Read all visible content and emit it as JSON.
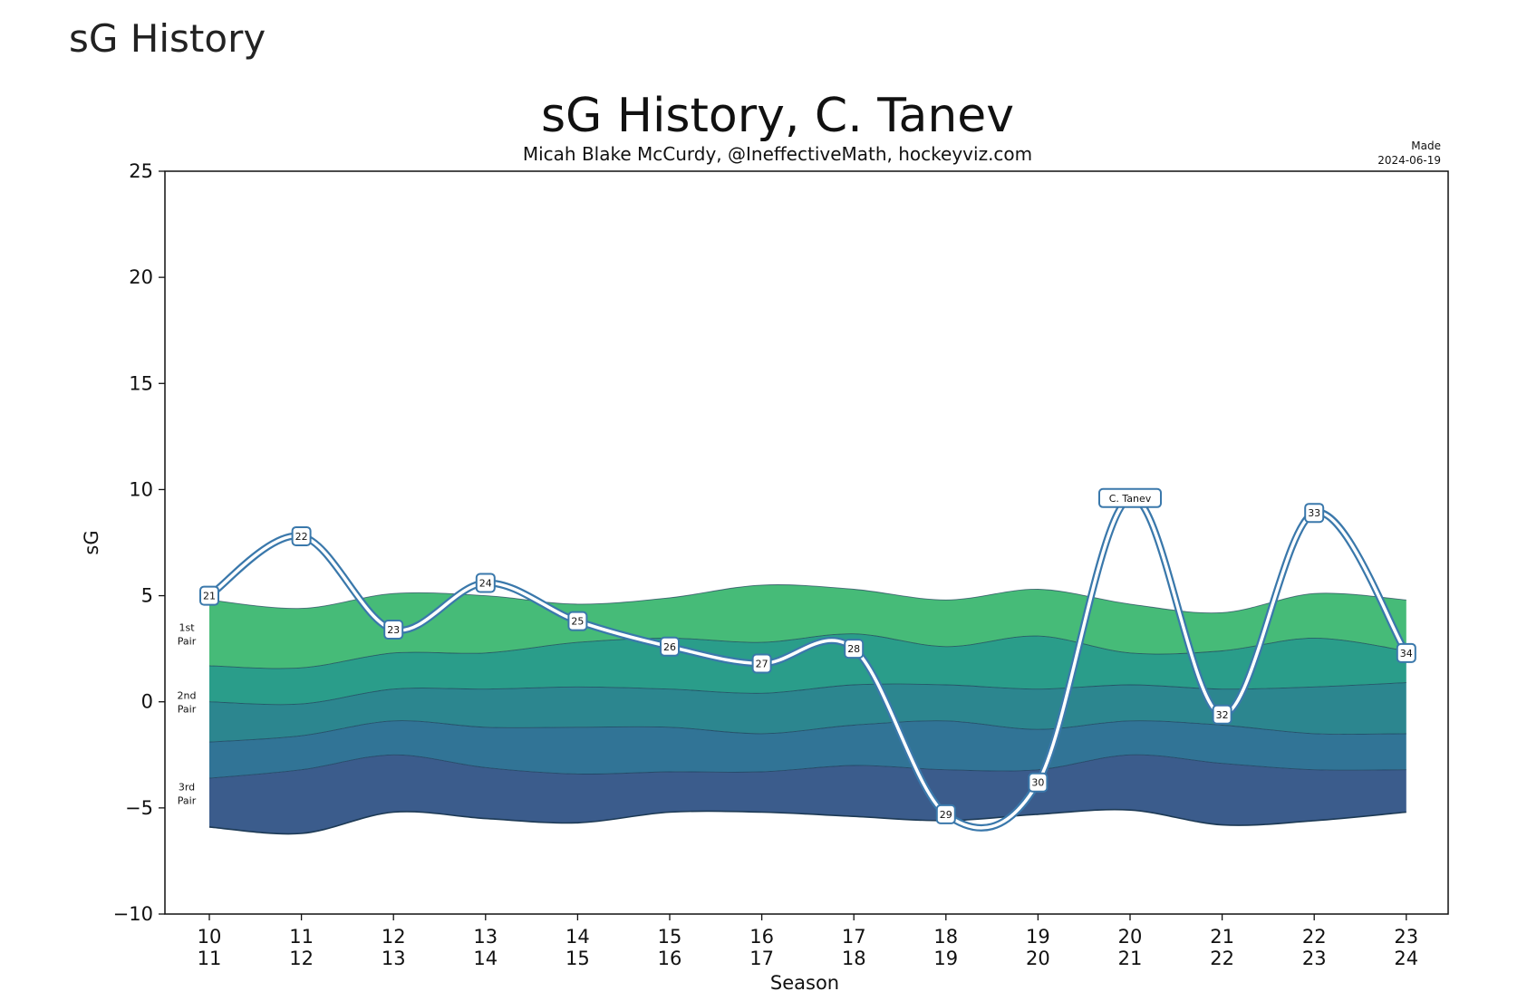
{
  "page": {
    "heading": "sG History"
  },
  "chart_data": {
    "type": "area",
    "title": "sG History, C. Tanev",
    "subtitle": "Micah Blake McCurdy, @IneffectiveMath, hockeyviz.com",
    "made_label": "Made",
    "made_date": "2024-06-19",
    "xlabel": "Season",
    "ylabel": "sG",
    "ylim": [
      -10,
      25
    ],
    "yticks": [
      -10,
      -5,
      0,
      5,
      10,
      15,
      20,
      25
    ],
    "ytick_labels": [
      "−10",
      "−5",
      "0",
      "5",
      "10",
      "15",
      "20",
      "25"
    ],
    "categories": [
      [
        "10",
        "11"
      ],
      [
        "11",
        "12"
      ],
      [
        "12",
        "13"
      ],
      [
        "13",
        "14"
      ],
      [
        "14",
        "15"
      ],
      [
        "15",
        "16"
      ],
      [
        "16",
        "17"
      ],
      [
        "17",
        "18"
      ],
      [
        "18",
        "19"
      ],
      [
        "19",
        "20"
      ],
      [
        "20",
        "21"
      ],
      [
        "21",
        "22"
      ],
      [
        "22",
        "23"
      ],
      [
        "23",
        "24"
      ]
    ],
    "bands": {
      "boundaries": [
        [
          -5.9,
          -6.2,
          -5.2,
          -5.5,
          -5.7,
          -5.2,
          -5.2,
          -5.4,
          -5.6,
          -5.3,
          -5.1,
          -5.8,
          -5.6,
          -5.2
        ],
        [
          -3.6,
          -3.2,
          -2.5,
          -3.1,
          -3.4,
          -3.3,
          -3.3,
          -3.0,
          -3.2,
          -3.2,
          -2.5,
          -2.9,
          -3.2,
          -3.2
        ],
        [
          -1.9,
          -1.6,
          -0.9,
          -1.2,
          -1.2,
          -1.2,
          -1.5,
          -1.1,
          -0.9,
          -1.3,
          -0.9,
          -1.1,
          -1.5,
          -1.5
        ],
        [
          0.0,
          -0.1,
          0.6,
          0.6,
          0.7,
          0.6,
          0.4,
          0.8,
          0.8,
          0.6,
          0.8,
          0.6,
          0.7,
          0.9
        ],
        [
          1.7,
          1.6,
          2.3,
          2.3,
          2.8,
          3.0,
          2.8,
          3.2,
          2.6,
          3.1,
          2.3,
          2.4,
          3.0,
          2.4
        ],
        [
          4.8,
          4.4,
          5.1,
          5.0,
          4.6,
          4.9,
          5.5,
          5.3,
          4.8,
          5.3,
          4.6,
          4.2,
          5.1,
          4.8
        ]
      ],
      "colors": [
        "#3b5c8c",
        "#317496",
        "#2c868f",
        "#2a9d8a",
        "#46bb78"
      ],
      "labels": [
        {
          "line1": "3rd",
          "line2": "Pair",
          "value": -4.3
        },
        {
          "line1": "2nd",
          "line2": "Pair",
          "value": 0.0
        },
        {
          "line1": "1st",
          "line2": "Pair",
          "value": 3.2
        }
      ]
    },
    "series": [
      {
        "name": "C. Tanev",
        "color": "#3a78ab",
        "values": [
          5.0,
          7.8,
          3.4,
          5.6,
          3.8,
          2.6,
          1.8,
          2.5,
          -5.3,
          -3.8,
          9.6,
          -0.6,
          8.9,
          2.3
        ],
        "point_labels": [
          "21",
          "22",
          "23",
          "24",
          "25",
          "26",
          "27",
          "28",
          "29",
          "30",
          "C. Tanev",
          "32",
          "33",
          "34"
        ]
      }
    ]
  }
}
